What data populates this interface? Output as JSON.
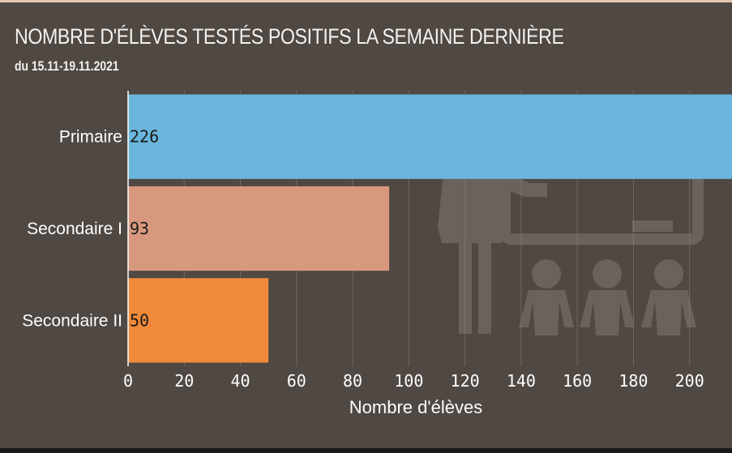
{
  "chart_data": {
    "type": "bar",
    "orientation": "horizontal",
    "title": "NOMBRE D'ÉLÈVES TESTÉS POSITIFS LA SEMAINE DERNIÈRE",
    "subtitle": "du 15.11-19.11.2021",
    "categories": [
      "Primaire",
      "Secondaire I",
      "Secondaire II"
    ],
    "values": [
      226,
      93,
      50
    ],
    "data_labels": [
      "226",
      "93",
      "50"
    ],
    "colors": [
      "#6ab6dc",
      "#d8987e",
      "#f08a3a"
    ],
    "xlabel": "Nombre d'élèves",
    "ylabel": "",
    "xlim": [
      0,
      205
    ],
    "xticks": [
      0,
      20,
      40,
      60,
      80,
      100,
      120,
      140,
      160,
      180,
      200
    ],
    "grid": true
  },
  "colors": {
    "background": "#4f4843",
    "illustration": "#6a625c",
    "text": "#ffffff"
  },
  "illustration": {
    "icon": "teacher-classroom-icon"
  }
}
